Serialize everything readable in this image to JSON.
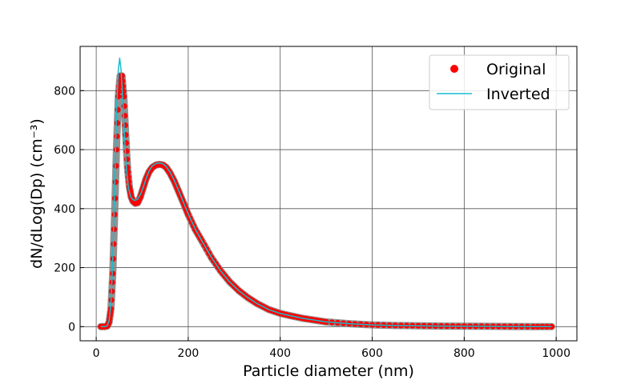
{
  "chart_data": {
    "type": "scatter",
    "title": "",
    "xlabel": "Particle diameter (nm)",
    "ylabel": "dN/dLog(Dp) (cm⁻³)",
    "xlim": [
      -35,
      1045
    ],
    "ylim": [
      -48,
      950
    ],
    "x_ticks": [
      0,
      200,
      400,
      600,
      800,
      1000
    ],
    "y_ticks": [
      0,
      200,
      400,
      600,
      800
    ],
    "grid": true,
    "legend_position": "top-right",
    "colors": {
      "original": "#ff0000",
      "inverted": "#17becf",
      "band": "#7f7f7f"
    },
    "series": [
      {
        "name": "Original",
        "style": "markers",
        "x": [
          10,
          18,
          24,
          28,
          32,
          36,
          40,
          44,
          48,
          52,
          56,
          60,
          64,
          68,
          72,
          76,
          80,
          85,
          90,
          96,
          102,
          108,
          115,
          122,
          130,
          138,
          145,
          152,
          160,
          170,
          180,
          190,
          200,
          215,
          230,
          250,
          270,
          290,
          310,
          330,
          350,
          375,
          400,
          425,
          450,
          475,
          500,
          550,
          600,
          650,
          700,
          750,
          800,
          850,
          900,
          950,
          990
        ],
        "y": [
          0,
          0,
          2,
          15,
          60,
          180,
          380,
          600,
          780,
          850,
          850,
          780,
          650,
          540,
          475,
          440,
          425,
          418,
          420,
          440,
          470,
          500,
          525,
          540,
          548,
          550,
          548,
          540,
          522,
          492,
          455,
          418,
          380,
          330,
          290,
          235,
          190,
          152,
          122,
          98,
          78,
          58,
          45,
          36,
          28,
          22,
          16,
          10,
          6,
          4,
          3,
          2,
          1.5,
          1,
          0.5,
          0,
          0
        ]
      },
      {
        "name": "Inverted",
        "style": "line",
        "x": [
          10,
          18,
          24,
          28,
          32,
          36,
          40,
          44,
          48,
          51,
          54,
          58,
          62,
          66,
          70,
          75,
          80,
          85,
          90,
          96,
          102,
          108,
          115,
          122,
          130,
          138,
          145,
          152,
          160,
          170,
          180,
          190,
          200,
          215,
          230,
          250,
          270,
          290,
          310,
          330,
          350,
          375,
          400,
          425,
          450,
          475,
          500,
          550,
          600,
          650,
          700,
          750,
          800,
          850,
          900,
          950,
          990
        ],
        "y": [
          0,
          0,
          3,
          20,
          80,
          230,
          470,
          720,
          870,
          910,
          870,
          760,
          630,
          530,
          470,
          440,
          430,
          428,
          432,
          448,
          472,
          500,
          528,
          545,
          553,
          555,
          552,
          543,
          525,
          495,
          458,
          420,
          382,
          332,
          290,
          236,
          190,
          152,
          122,
          98,
          78,
          58,
          45,
          36,
          28,
          22,
          16,
          10,
          6,
          4,
          3,
          2,
          1.5,
          1,
          0.5,
          0,
          0
        ]
      }
    ]
  }
}
